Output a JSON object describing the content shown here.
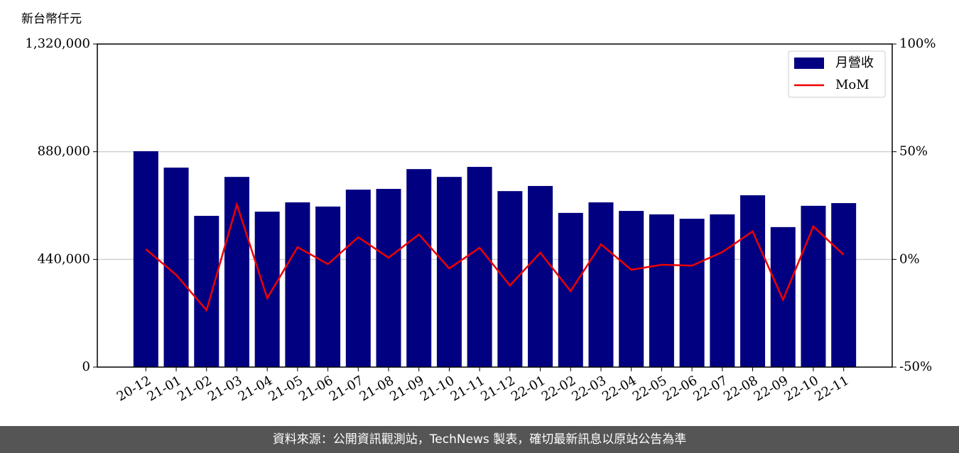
{
  "chart_data": {
    "type": "bar_line",
    "y_axis_label": "新台幣仟元",
    "categories": [
      "20-12",
      "21-01",
      "21-02",
      "21-03",
      "21-04",
      "21-05",
      "21-06",
      "21-07",
      "21-08",
      "21-09",
      "21-10",
      "21-11",
      "21-12",
      "22-01",
      "22-02",
      "22-03",
      "22-04",
      "22-05",
      "22-06",
      "22-07",
      "22-08",
      "22-09",
      "22-10",
      "22-11"
    ],
    "series": [
      {
        "name": "月營收",
        "color": "#000080",
        "values": [
          882000,
          815000,
          618000,
          777000,
          635000,
          673000,
          656000,
          725000,
          728000,
          809000,
          777000,
          818000,
          719000,
          740000,
          630000,
          673000,
          638000,
          624000,
          606000,
          624000,
          702000,
          572000,
          659000,
          670000
        ]
      },
      {
        "name": "MoM",
        "color": "#ee0000",
        "axis": "y2",
        "values": [
          4.7,
          -7.2,
          -23.6,
          25.5,
          -18.0,
          5.7,
          -2.2,
          10.3,
          0.8,
          11.6,
          -4.2,
          5.4,
          -12.1,
          3.1,
          -14.7,
          7.0,
          -4.8,
          -2.5,
          -2.9,
          3.4,
          13.0,
          -18.7,
          15.3,
          2.1
        ]
      }
    ],
    "ylim": [
      0,
      1320000
    ],
    "yticks": [
      0,
      {
        "value": 440000,
        "label": "440,000"
      },
      {
        "value": 880000,
        "label": "880,000"
      },
      {
        "value": 1320000,
        "label": "1,320,000"
      }
    ],
    "y2lim": [
      -50,
      100
    ],
    "y2ticks": [
      {
        "value": -50,
        "label": "-50%"
      },
      {
        "value": 0,
        "label": "0%"
      },
      {
        "value": 50,
        "label": "50%"
      },
      {
        "value": 100,
        "label": "100%"
      }
    ],
    "grid": true,
    "legend": "upper right",
    "source": "資料來源：公開資訊觀測站，TechNews 製表，確切最新訊息以原站公告為準"
  }
}
